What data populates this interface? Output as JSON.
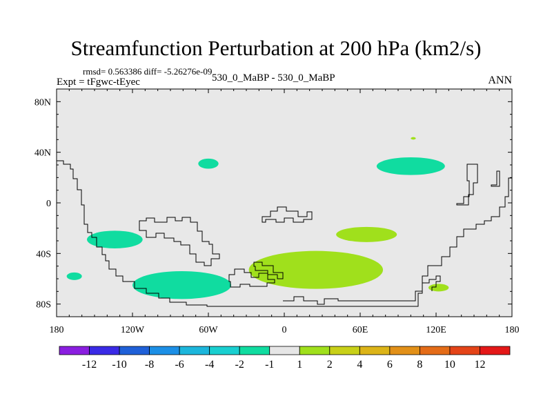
{
  "title": "Streamfunction Perturbation at 200 hPa (km2/s)",
  "stats": "rmsd= 0.563386 diff= -5.26276e-09",
  "experiment_label": "Expt = tFgwc-tEyec",
  "experiments": "530_0_MaBP - 530_0_MaBP",
  "season": "ANN",
  "colors": {
    "background": "#e8e8e8",
    "coast": "#000000",
    "levels": [
      "#8a1ee0",
      "#3a2ae6",
      "#1f60d8",
      "#1c8fe6",
      "#1cb6dc",
      "#19cfd0",
      "#10dca0",
      "#e6e6e6",
      "#a0e01c",
      "#c8d018",
      "#dcb418",
      "#e29018",
      "#e46c18",
      "#e44418",
      "#e41818"
    ]
  },
  "chart_data": {
    "type": "filled-contour-map",
    "title": "Streamfunction Perturbation at 200 hPa (km2/s)",
    "projection": "cylindrical equidistant",
    "lon_range": [
      -180,
      180
    ],
    "lat_range": [
      -90,
      90
    ],
    "x_ticks": [
      {
        "value": -180,
        "label": "180"
      },
      {
        "value": -120,
        "label": "120W"
      },
      {
        "value": -60,
        "label": "60W"
      },
      {
        "value": 0,
        "label": "0"
      },
      {
        "value": 60,
        "label": "60E"
      },
      {
        "value": 120,
        "label": "120E"
      },
      {
        "value": 180,
        "label": "180"
      }
    ],
    "y_ticks": [
      {
        "value": 80,
        "label": "80N"
      },
      {
        "value": 40,
        "label": "40N"
      },
      {
        "value": 0,
        "label": "0"
      },
      {
        "value": -40,
        "label": "40S"
      },
      {
        "value": -80,
        "label": "80S"
      }
    ],
    "contour_levels": [
      "-12",
      "-10",
      "-8",
      "-6",
      "-4",
      "-2",
      "-1",
      "1",
      "2",
      "4",
      "6",
      "8",
      "10",
      "12"
    ],
    "anomalies": [
      {
        "lon": -134,
        "lat": -29,
        "rx": 22,
        "ry": 7,
        "value": -2
      },
      {
        "lon": -166,
        "lat": -58,
        "rx": 6,
        "ry": 3,
        "value": -2
      },
      {
        "lon": -81,
        "lat": -65,
        "rx": 39,
        "ry": 11,
        "value": -2
      },
      {
        "lon": -60,
        "lat": 31,
        "rx": 8,
        "ry": 4,
        "value": -2
      },
      {
        "lon": 100,
        "lat": 29,
        "rx": 27,
        "ry": 7,
        "value": -2
      },
      {
        "lon": 25,
        "lat": -53,
        "rx": 53,
        "ry": 15,
        "value": 1
      },
      {
        "lon": 65,
        "lat": -25,
        "rx": 24,
        "ry": 6,
        "value": 1
      },
      {
        "lon": 122,
        "lat": -67,
        "rx": 8,
        "ry": 3,
        "value": 1
      },
      {
        "lon": 102,
        "lat": 51,
        "rx": 2,
        "ry": 1,
        "value": 1
      }
    ]
  }
}
